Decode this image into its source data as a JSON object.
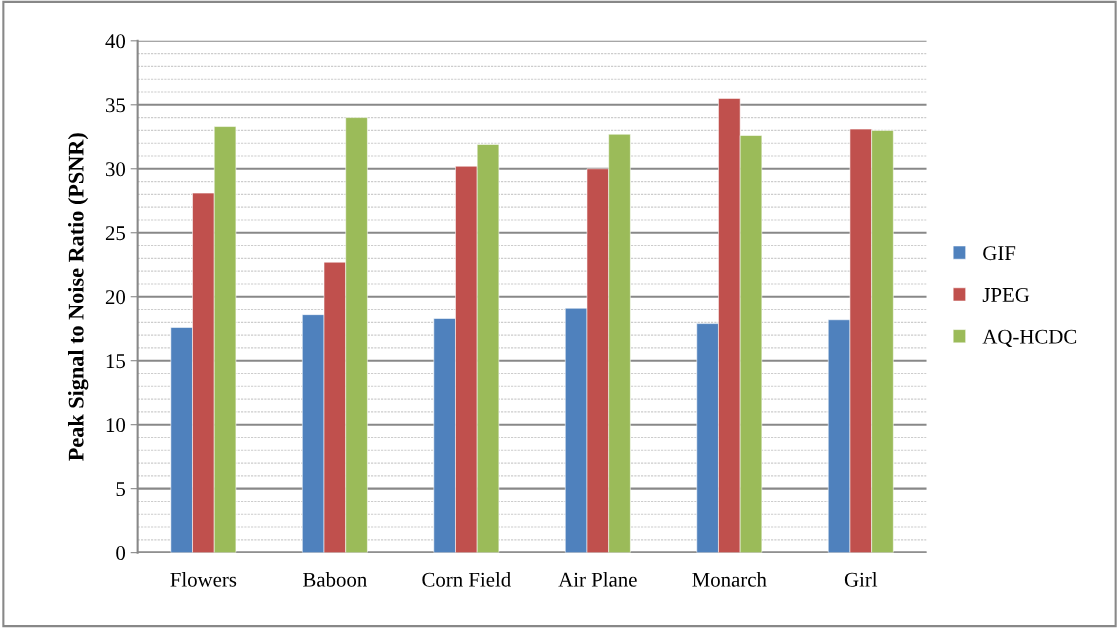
{
  "chart_data": {
    "type": "bar",
    "ylabel": "Peak Signal to Noise Ratio (PSNR)",
    "categories": [
      "Flowers",
      "Baboon",
      "Corn Field",
      "Air Plane",
      "Monarch",
      "Girl"
    ],
    "series": [
      {
        "name": "GIF",
        "color": "#4f81bd",
        "values": [
          17.6,
          18.6,
          18.3,
          19.1,
          17.9,
          18.2
        ]
      },
      {
        "name": "JPEG",
        "color": "#c0504d",
        "values": [
          28.1,
          22.7,
          30.2,
          30.0,
          35.5,
          33.1
        ]
      },
      {
        "name": "AQ-HCDC",
        "color": "#9bbb59",
        "values": [
          33.3,
          34.0,
          31.9,
          32.7,
          32.6,
          33.0
        ]
      }
    ],
    "ylim": [
      0,
      40
    ],
    "yticks": [
      0,
      5,
      10,
      15,
      20,
      25,
      30,
      35,
      40
    ],
    "grid": "y",
    "legend": "right"
  }
}
